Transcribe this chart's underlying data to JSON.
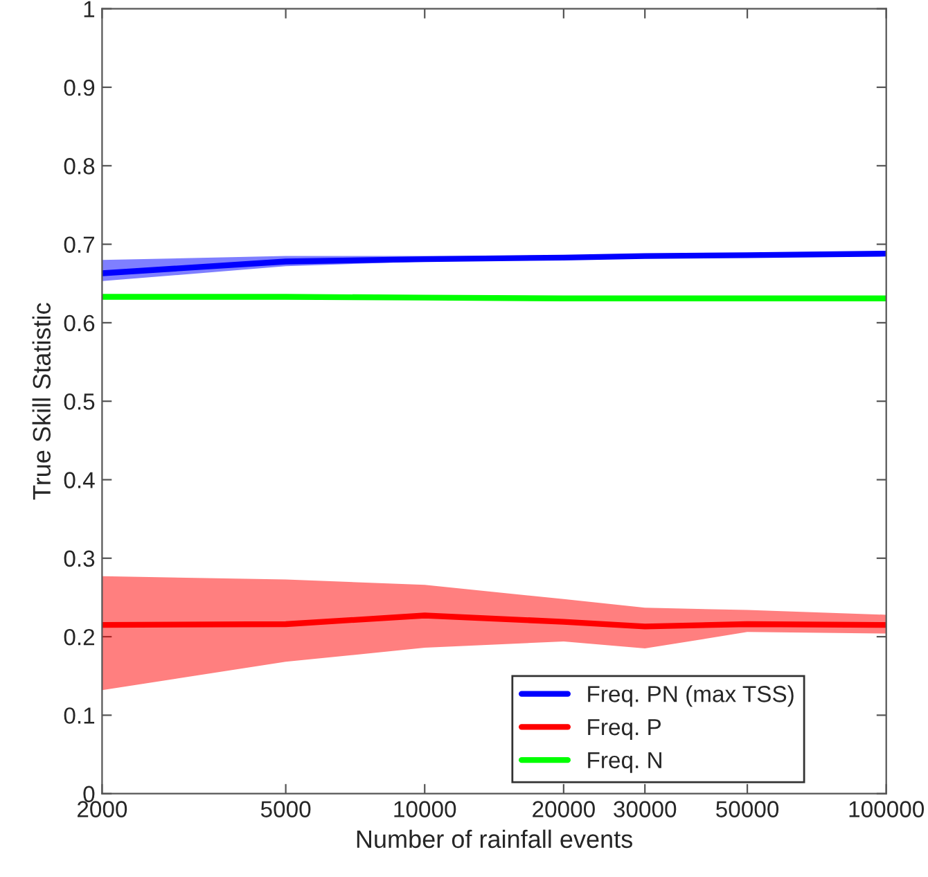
{
  "chart_data": {
    "type": "line",
    "xlabel": "Number of rainfall events",
    "ylabel": "True Skill Statistic",
    "x": [
      2000,
      5000,
      10000,
      20000,
      30000,
      50000,
      100000
    ],
    "log": "x",
    "xlim": [
      2000,
      100000
    ],
    "xticks": [
      2000,
      5000,
      10000,
      20000,
      30000,
      50000,
      100000
    ],
    "ylim": [
      0,
      1
    ],
    "yticks": [
      0,
      0.1,
      0.2,
      0.3,
      0.4,
      0.5,
      0.6,
      0.7,
      0.8,
      0.9,
      1
    ],
    "grid": false,
    "legend": "bottom right",
    "series": [
      {
        "name": "Freq. PN (max TSS)",
        "color": "#0000ff",
        "values": [
          0.663,
          0.678,
          0.681,
          0.683,
          0.685,
          0.686,
          0.688
        ],
        "lower": [
          0.653,
          0.672,
          0.678,
          0.681,
          0.683,
          0.685,
          0.687
        ],
        "upper": [
          0.68,
          0.685,
          0.685,
          0.685,
          0.686,
          0.687,
          0.689
        ]
      },
      {
        "name": "Freq. P",
        "color": "#ff0000",
        "values": [
          0.215,
          0.216,
          0.227,
          0.219,
          0.213,
          0.216,
          0.215
        ],
        "lower": [
          0.132,
          0.168,
          0.186,
          0.194,
          0.185,
          0.206,
          0.204
        ],
        "upper": [
          0.277,
          0.273,
          0.266,
          0.248,
          0.237,
          0.234,
          0.228
        ]
      },
      {
        "name": "Freq. N",
        "color": "#00ff00",
        "values": [
          0.633,
          0.633,
          0.632,
          0.631,
          0.631,
          0.631,
          0.631
        ]
      }
    ]
  }
}
